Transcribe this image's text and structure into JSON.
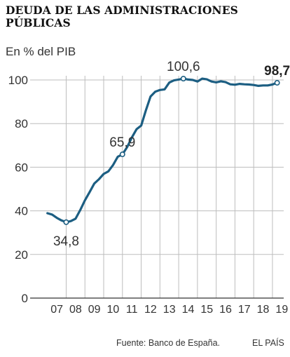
{
  "header": {
    "title": "DEUDA DE LAS ADMINISTRACIONES PÚBLICAS",
    "subtitle": "En % del PIB"
  },
  "footer": {
    "source": "Fuente: Banco de España.",
    "brand": "EL PAÍS"
  },
  "colors": {
    "line": "#1c5e82",
    "grid": "#bdbdbd",
    "axis": "#333333",
    "text": "#333333"
  },
  "chart_data": {
    "type": "line",
    "title": "DEUDA DE LAS ADMINISTRACIONES PÚBLICAS",
    "ylabel": "En % del PIB",
    "xlabel": "",
    "ylim": [
      0,
      100
    ],
    "xlim": [
      2006.6,
      2019.6
    ],
    "grid": true,
    "y_ticks": [
      0,
      20,
      40,
      60,
      80,
      100
    ],
    "y_tick_labels": [
      "0",
      "20",
      "40",
      "60",
      "80",
      "100"
    ],
    "x_ticks": [
      2007.5,
      2008.5,
      2009.5,
      2010.5,
      2011.5,
      2012.5,
      2013.5,
      2014.5,
      2015.5,
      2016.5,
      2017.5,
      2018.5,
      2019.5
    ],
    "x_tick_labels": [
      "07",
      "08",
      "09",
      "10",
      "11",
      "12",
      "13",
      "14",
      "15",
      "16",
      "17",
      "18",
      "19"
    ],
    "x_gridlines": [
      2008,
      2009,
      2010,
      2011,
      2012,
      2013,
      2014,
      2015,
      2016,
      2017,
      2018,
      2019
    ],
    "series": [
      {
        "x": [
          2007.0,
          2007.25,
          2007.5,
          2007.75,
          2008.0,
          2008.25,
          2008.5,
          2008.75,
          2009.0,
          2009.25,
          2009.5,
          2009.75,
          2010.0,
          2010.25,
          2010.5,
          2010.75,
          2011.0,
          2011.25,
          2011.5,
          2011.75,
          2012.0,
          2012.25,
          2012.5,
          2012.75,
          2013.0,
          2013.25,
          2013.5,
          2013.75,
          2014.0,
          2014.25,
          2014.5,
          2014.75,
          2015.0,
          2015.25,
          2015.5,
          2015.75,
          2016.0,
          2016.25,
          2016.5,
          2016.75,
          2017.0,
          2017.25,
          2017.5,
          2017.75,
          2018.0,
          2018.25,
          2018.5,
          2018.75,
          2019.0,
          2019.25
        ],
        "values": [
          38.9,
          38.3,
          36.8,
          35.6,
          34.8,
          35.3,
          36.4,
          40.4,
          44.8,
          48.6,
          52.5,
          54.5,
          56.9,
          58.1,
          61.0,
          64.8,
          65.9,
          69.2,
          73.6,
          77.4,
          79.1,
          86.0,
          92.4,
          94.6,
          95.4,
          95.7,
          98.8,
          99.8,
          100.2,
          100.6,
          100.2,
          100.0,
          99.3,
          100.6,
          100.3,
          99.3,
          98.9,
          99.4,
          99.0,
          98.0,
          97.8,
          98.2,
          98.0,
          97.9,
          97.7,
          97.3,
          97.5,
          97.5,
          97.9,
          98.7
        ]
      }
    ],
    "annotations": [
      {
        "x": 2008.0,
        "y": 34.8,
        "label": "34,8",
        "bold": false,
        "position": "below"
      },
      {
        "x": 2011.0,
        "y": 65.9,
        "label": "65,9",
        "bold": false,
        "position": "above"
      },
      {
        "x": 2014.25,
        "y": 100.6,
        "label": "100,6",
        "bold": false,
        "position": "above"
      },
      {
        "x": 2019.25,
        "y": 98.7,
        "label": "98,7",
        "bold": true,
        "position": "above"
      }
    ]
  }
}
